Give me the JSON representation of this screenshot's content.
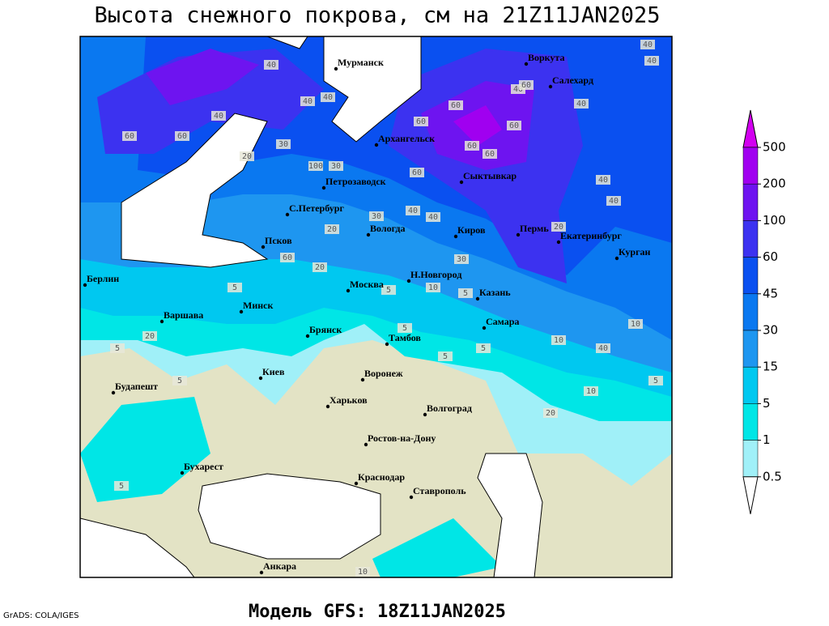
{
  "header": {
    "title": "Высота снежного покрова, см на 21Z11JAN2025"
  },
  "footer": {
    "model": "Модель GFS: 18Z11JAN2025",
    "credit": "GrADS: COLA/IGES"
  },
  "legend": {
    "levels": [
      500,
      200,
      100,
      60,
      45,
      30,
      15,
      5,
      1,
      0.5
    ],
    "colors": [
      "#d200f0",
      "#a000f0",
      "#6e14f0",
      "#3c32f0",
      "#0a50f0",
      "#0a78f0",
      "#1e96f0",
      "#00c8f0",
      "#00e6e6",
      "#a0f0f8",
      "#ffffff"
    ]
  },
  "cities": [
    "Мурманск",
    "Воркута",
    "Салехард",
    "Архангельск",
    "Петрозаводск",
    "Сыктывкар",
    "С.Петербург",
    "Вологда",
    "Киров",
    "Пермь",
    "Екатеринбург",
    "Курган",
    "Псков",
    "Н.Новгород",
    "Казань",
    "Берлин",
    "Москва",
    "Минск",
    "Варшава",
    "Самара",
    "Брянск",
    "Тамбов",
    "Киев",
    "Воронеж",
    "Будапешт",
    "Харьков",
    "Волгоград",
    "Ростов-на-Дону",
    "Бухарест",
    "Краснодар",
    "Ставрополь",
    "Анкара"
  ],
  "contour_labels": [
    40,
    40,
    30,
    60,
    40,
    60,
    40,
    40,
    40,
    60,
    60,
    40,
    60,
    40,
    20,
    30,
    60,
    60,
    100,
    60,
    60,
    40,
    40,
    30,
    40,
    40,
    20,
    60,
    20,
    30,
    20,
    5,
    5,
    10,
    5,
    5,
    5,
    10,
    10,
    40,
    20,
    5,
    10,
    5,
    5,
    20,
    5,
    5,
    10
  ]
}
